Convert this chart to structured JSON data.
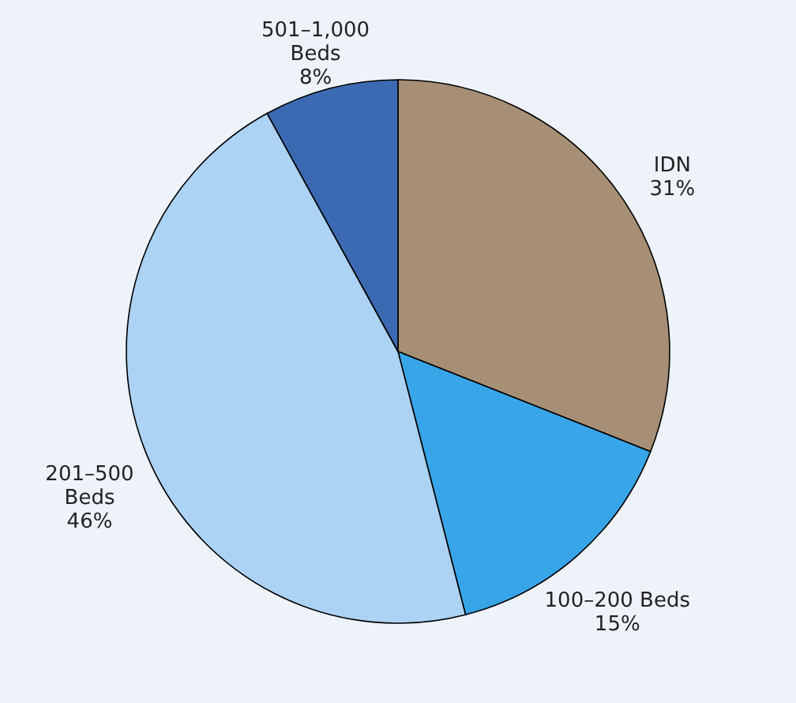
{
  "chart_data": {
    "type": "pie",
    "categories": [
      "IDN",
      "100–200 Beds",
      "201–500\nBeds",
      "501–1,000\nBeds"
    ],
    "values": [
      31,
      15,
      46,
      8
    ],
    "colors": [
      "#a68f75",
      "#38a5e8",
      "#acd2f4",
      "#3c6ab2"
    ],
    "value_labels": [
      "31%",
      "15%",
      "46%",
      "8%"
    ],
    "legend": false
  }
}
